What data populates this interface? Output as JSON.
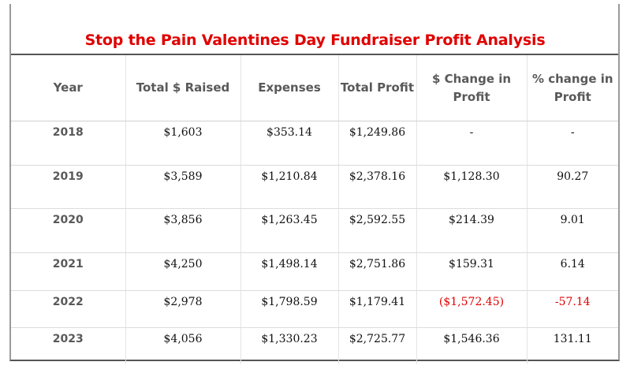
{
  "title": "Stop the Pain Valentines Day Fundraiser Profit Analysis",
  "colors": {
    "title": "#e00000",
    "negative": "#e00000",
    "header_text": "#595959"
  },
  "table": {
    "headers": [
      "Year",
      "Total $ Raised",
      "Expenses",
      "Total Profit",
      "$ Change in Profit",
      "% change in Profit"
    ],
    "rows": [
      {
        "year": "2018",
        "raised": "$1,603",
        "expenses": "$353.14",
        "profit": "$1,249.86",
        "change_dollar": "-",
        "change_pct": "-"
      },
      {
        "year": "2019",
        "raised": "$3,589",
        "expenses": "$1,210.84",
        "profit": "$2,378.16",
        "change_dollar": "$1,128.30",
        "change_pct": "90.27"
      },
      {
        "year": "2020",
        "raised": "$3,856",
        "expenses": "$1,263.45",
        "profit": "$2,592.55",
        "change_dollar": "$214.39",
        "change_pct": "9.01"
      },
      {
        "year": "2021",
        "raised": "$4,250",
        "expenses": "$1,498.14",
        "profit": "$2,751.86",
        "change_dollar": "$159.31",
        "change_pct": "6.14"
      },
      {
        "year": "2022",
        "raised": "$2,978",
        "expenses": "$1,798.59",
        "profit": "$1,179.41",
        "change_dollar": "($1,572.45)",
        "change_pct": "-57.14"
      },
      {
        "year": "2023",
        "raised": "$4,056",
        "expenses": "$1,330.23",
        "profit": "$2,725.77",
        "change_dollar": "$1,546.36",
        "change_pct": "131.11"
      }
    ]
  }
}
